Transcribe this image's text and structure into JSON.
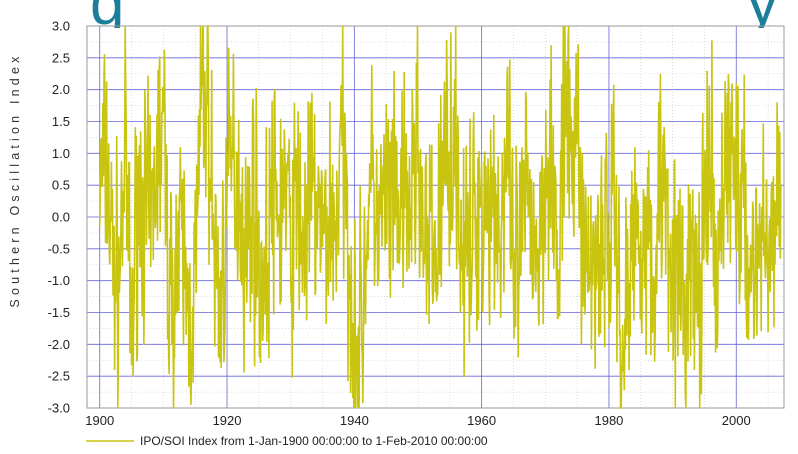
{
  "header": {
    "title_left": "g",
    "title_right": "y"
  },
  "colors": {
    "series": "#c8c40f",
    "grid_major": "#6666dd",
    "grid_minor": "#c9c9c9",
    "title": "#1b7f99"
  },
  "chart_data": {
    "type": "line",
    "title": "",
    "xlabel": "",
    "ylabel": "Southern Oscillation Index",
    "xlim": [
      1898,
      2007.5
    ],
    "ylim": [
      -3.0,
      3.0
    ],
    "x_ticks": [
      1900,
      1920,
      1940,
      1960,
      1980,
      2000
    ],
    "y_ticks": [
      3.0,
      2.5,
      2.0,
      1.5,
      1.0,
      0.5,
      0.0,
      -0.5,
      -1.0,
      -1.5,
      -2.0,
      -2.5,
      -3.0
    ],
    "grid": true,
    "legend": "bottom",
    "series": [
      {
        "name": "IPO/SOI Index from  1-Jan-1900 00:00:00 to  1-Feb-2010 00:00:00",
        "x": [
          1900,
          1901,
          1902,
          1903,
          1904,
          1905,
          1906,
          1907,
          1908,
          1909,
          1910,
          1911,
          1912,
          1913,
          1914,
          1915,
          1916,
          1917,
          1918,
          1919,
          1920,
          1921,
          1922,
          1923,
          1924,
          1925,
          1926,
          1927,
          1928,
          1929,
          1930,
          1931,
          1932,
          1933,
          1934,
          1935,
          1936,
          1937,
          1938,
          1939,
          1940,
          1941,
          1942,
          1943,
          1944,
          1945,
          1946,
          1947,
          1948,
          1949,
          1950,
          1951,
          1952,
          1953,
          1954,
          1955,
          1956,
          1957,
          1958,
          1959,
          1960,
          1961,
          1962,
          1963,
          1964,
          1965,
          1966,
          1967,
          1968,
          1969,
          1970,
          1971,
          1972,
          1973,
          1974,
          1975,
          1976,
          1977,
          1978,
          1979,
          1980,
          1981,
          1982,
          1983,
          1984,
          1985,
          1986,
          1987,
          1988,
          1989,
          1990,
          1991,
          1992,
          1993,
          1994,
          1995,
          1996,
          1997,
          1998,
          1999,
          2000,
          2001,
          2002,
          2003,
          2004,
          2005,
          2006,
          2007
        ],
        "y": [
          0.4,
          1.0,
          -0.6,
          -1.1,
          1.1,
          -1.9,
          0.5,
          0.2,
          -0.3,
          1.0,
          1.4,
          -1.3,
          -0.8,
          -0.5,
          -1.6,
          -1.0,
          2.0,
          1.8,
          -0.6,
          -1.4,
          0.3,
          1.0,
          0.4,
          -0.7,
          0.5,
          -0.7,
          -1.0,
          0.3,
          -0.1,
          0.6,
          -0.5,
          0.3,
          -0.4,
          0.2,
          0.3,
          -0.5,
          0.1,
          -0.2,
          1.2,
          -0.3,
          -1.7,
          -2.0,
          0.0,
          0.5,
          -0.3,
          0.4,
          -0.1,
          0.2,
          0.0,
          0.3,
          1.4,
          -0.8,
          -0.5,
          -0.5,
          0.8,
          1.2,
          1.2,
          -0.6,
          -0.8,
          0.1,
          0.4,
          0.2,
          0.4,
          -0.2,
          0.9,
          -1.1,
          -0.6,
          0.3,
          0.0,
          -0.7,
          0.9,
          1.3,
          -1.4,
          1.6,
          1.1,
          1.4,
          -0.4,
          -0.9,
          -0.5,
          -0.2,
          -0.3,
          0.2,
          -2.2,
          -1.2,
          -0.2,
          0.0,
          -0.3,
          -1.4,
          0.9,
          0.4,
          -0.5,
          -1.3,
          -1.3,
          -0.7,
          -1.4,
          -0.3,
          0.7,
          -1.6,
          1.0,
          1.0,
          0.8,
          -0.1,
          -0.7,
          -0.6,
          -0.4,
          -0.3,
          -0.4,
          0.5
        ]
      }
    ],
    "annotations_note": ""
  }
}
